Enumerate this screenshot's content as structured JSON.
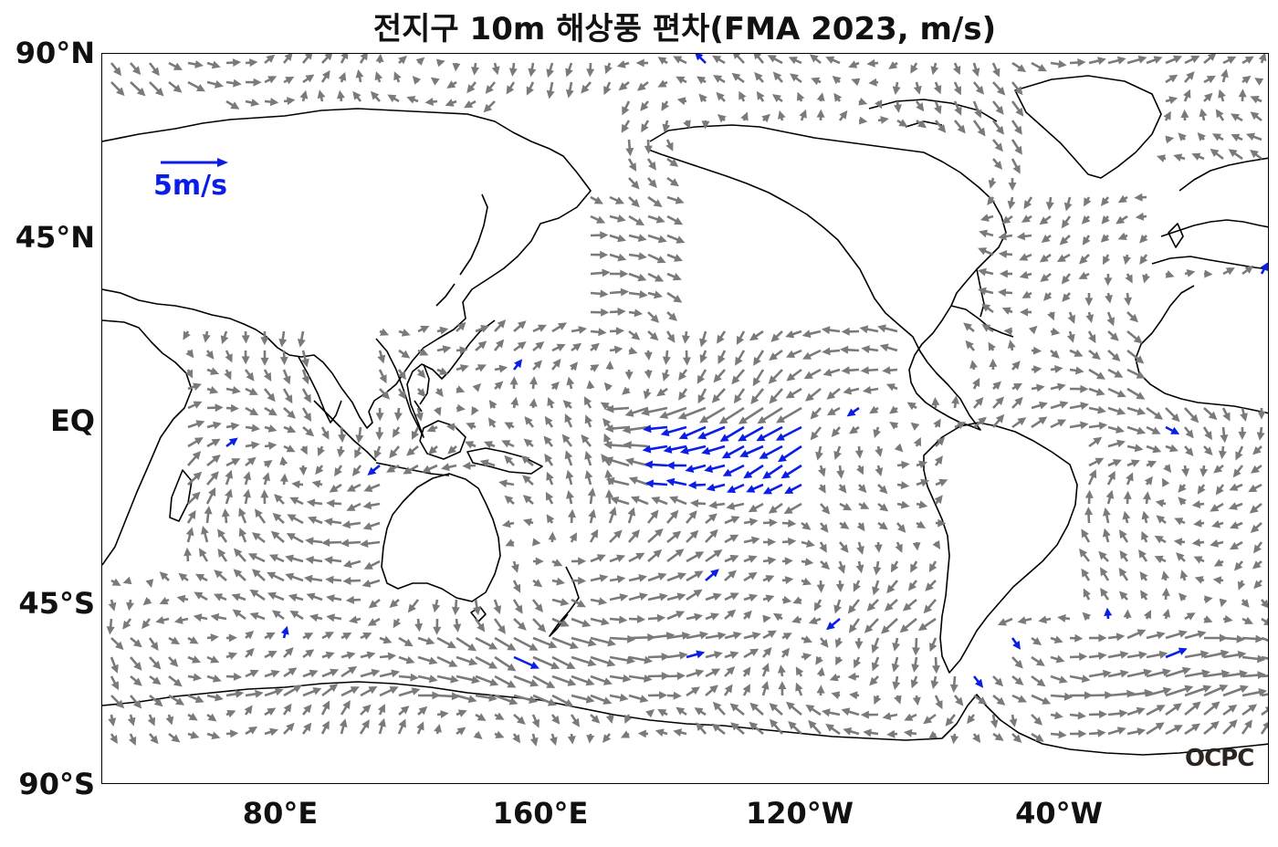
{
  "title": "전지구 10m 해상풍 편차(FMA 2023, m/s)",
  "lat_labels": [
    "90°N",
    "45°N",
    "EQ",
    "45°S",
    "90°S"
  ],
  "lon_labels": [
    "80°E",
    "160°E",
    "120°W",
    "40°W"
  ],
  "scale": {
    "label": "5m/s",
    "color": "#0a1ee6"
  },
  "logo": "OCPC",
  "colors": {
    "normal_vector": "#7a7a7a",
    "strong_vector": "#0a1ee6",
    "coastline": "#000000"
  },
  "map": {
    "projection": "equirectangular",
    "lon_range": [
      25,
      385
    ],
    "lat_range": [
      -90,
      90
    ]
  }
}
